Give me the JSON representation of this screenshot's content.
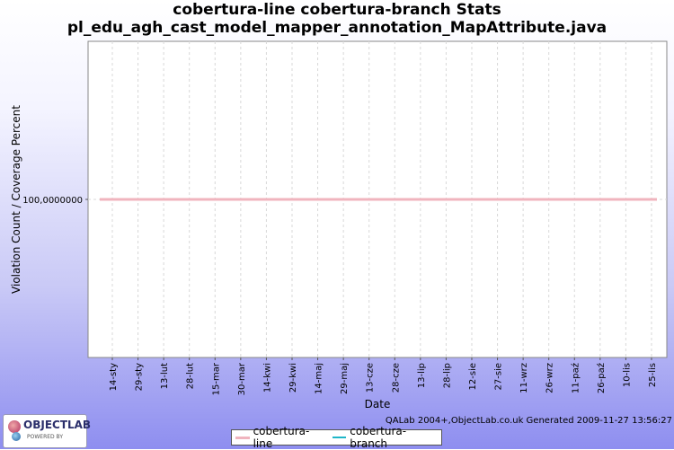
{
  "title_line1": "cobertura-line cobertura-branch  Stats",
  "title_line2": "pl_edu_agh_cast_model_mapper_annotation_MapAttribute.java",
  "footer": "QALab 2004+,ObjectLab.co.uk Generated 2009-11-27 13:56:27",
  "logo": {
    "name": "OBJECTLAB",
    "tagline": "POWERED BY"
  },
  "colors": {
    "line": "#f0b4be",
    "branch": "#1fb6c8",
    "grid": "#d8d8d8"
  },
  "chart_data": {
    "type": "line",
    "xlabel": "Date",
    "ylabel": "Violation Count / Coverage Percent",
    "categories": [
      "14-sty",
      "29-sty",
      "13-lut",
      "28-lut",
      "15-mar",
      "30-mar",
      "14-kwi",
      "29-kwi",
      "14-maj",
      "29-maj",
      "13-cze",
      "28-cze",
      "13-lip",
      "28-lip",
      "12-sie",
      "27-sie",
      "11-wrz",
      "26-wrz",
      "11-paź",
      "26-paź",
      "10-lis",
      "25-lis"
    ],
    "y_tick_label": "100,0000000",
    "series": [
      {
        "name": "cobertura-line",
        "values": [
          100,
          100,
          100,
          100,
          100,
          100,
          100,
          100,
          100,
          100,
          100,
          100,
          100,
          100,
          100,
          100,
          100,
          100,
          100,
          100,
          100,
          100
        ]
      },
      {
        "name": "cobertura-branch",
        "values": [
          100,
          100,
          100,
          100,
          100,
          100,
          100,
          100,
          100,
          100,
          100,
          100,
          100,
          100,
          100,
          100,
          100,
          100,
          100,
          100,
          100,
          100
        ]
      }
    ],
    "ylim": [
      99.5,
      100.5
    ],
    "grid": true,
    "legend_position": "bottom"
  }
}
